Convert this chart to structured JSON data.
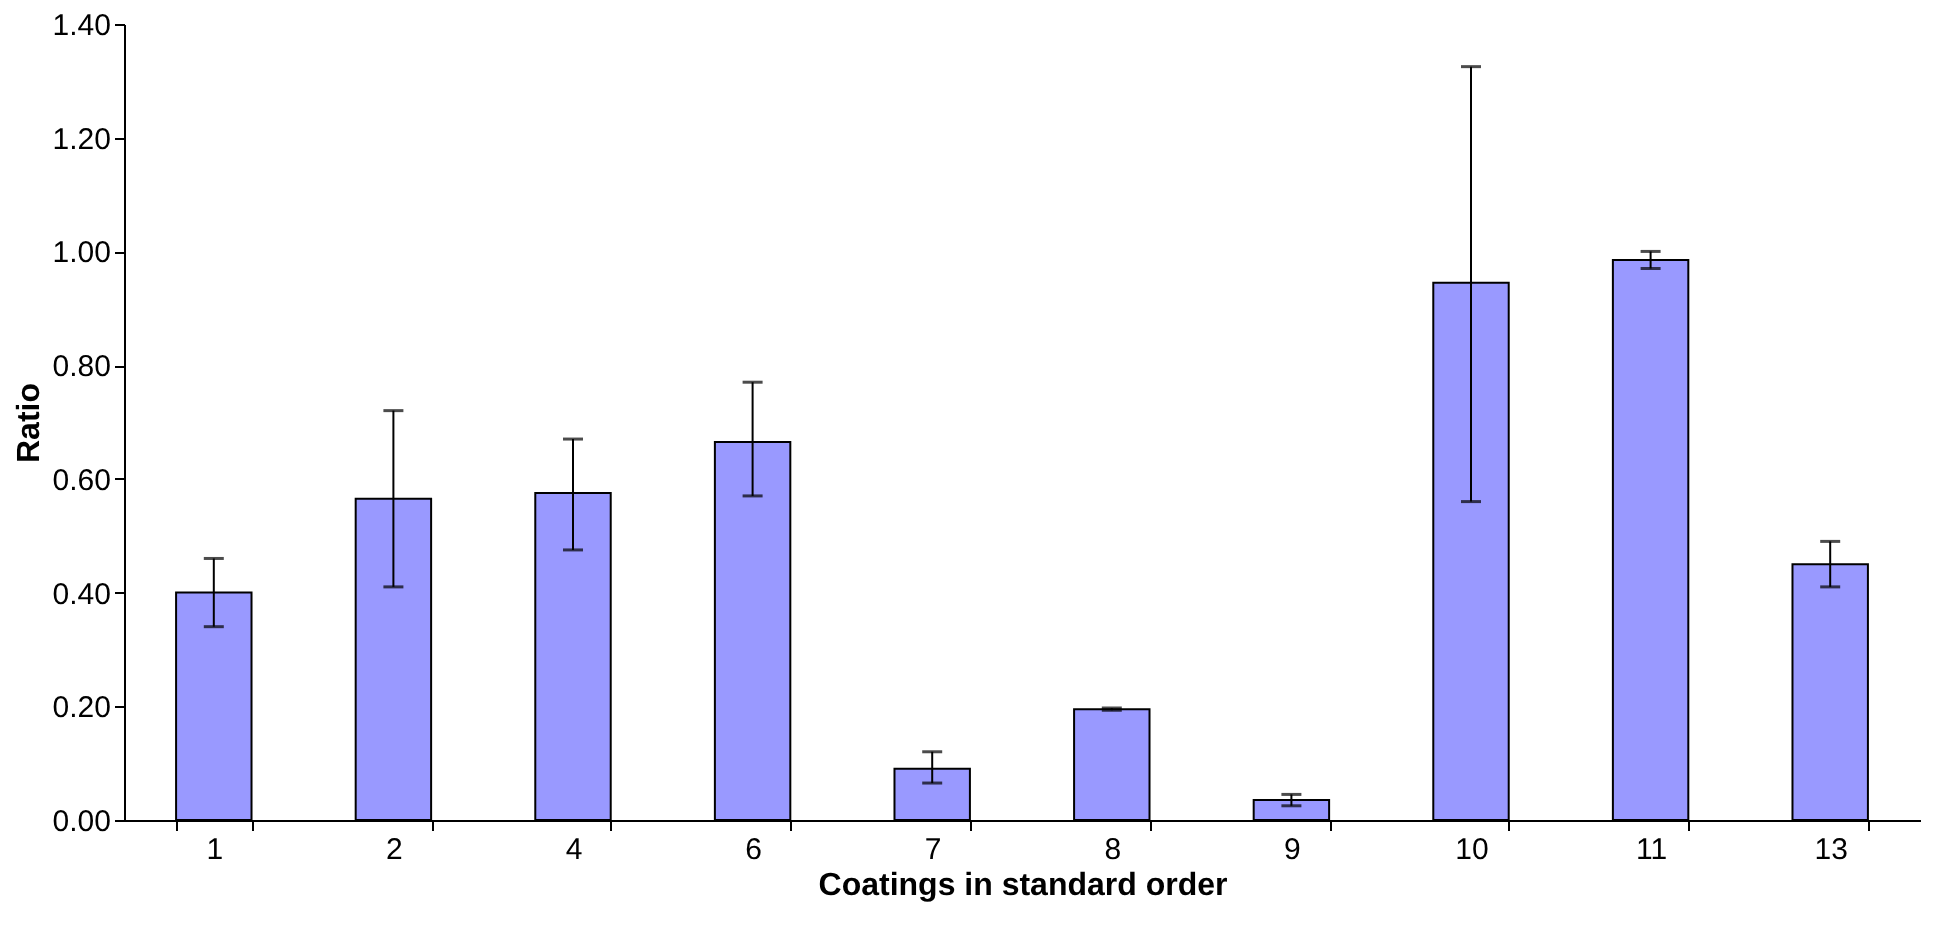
{
  "chart_data": {
    "type": "bar",
    "xlabel": "Coatings in standard order",
    "ylabel": "Ratio",
    "categories": [
      "1",
      "2",
      "4",
      "6",
      "7",
      "8",
      "9",
      "10",
      "11",
      "13"
    ],
    "values": [
      0.4,
      0.565,
      0.575,
      0.665,
      0.09,
      0.195,
      0.035,
      0.945,
      0.985,
      0.45
    ],
    "errors": [
      [
        0.34,
        0.46
      ],
      [
        0.41,
        0.72
      ],
      [
        0.475,
        0.67
      ],
      [
        0.57,
        0.77
      ],
      [
        0.065,
        0.12
      ],
      [
        0.193,
        0.197
      ],
      [
        0.025,
        0.045
      ],
      [
        0.56,
        1.325
      ],
      [
        0.97,
        1.0
      ],
      [
        0.41,
        0.49
      ]
    ],
    "color": "#9999ff",
    "ylim": [
      0,
      1.4
    ],
    "yticks": [
      {
        "value": 0,
        "label": "0.00"
      },
      {
        "value": 0.2,
        "label": "0.20"
      },
      {
        "value": 0.4,
        "label": "0.40"
      },
      {
        "value": 0.6,
        "label": "0.60"
      },
      {
        "value": 0.8,
        "label": "0.80"
      },
      {
        "value": 1.0,
        "label": "1.00"
      },
      {
        "value": 1.2,
        "label": "1.20"
      },
      {
        "value": 1.4,
        "label": "1.40"
      }
    ],
    "grid": false
  }
}
